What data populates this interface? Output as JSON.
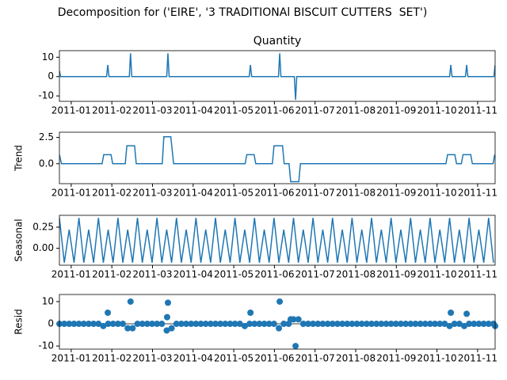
{
  "title": "Decomposition for ('EIRE', '3 TRADITIONAl BISCUIT CUTTERS  SET')",
  "chart_data": [
    {
      "type": "line",
      "title": "Quantity",
      "color": "#1f77b4",
      "x": [
        0.71,
        0.74,
        1.87,
        1.9,
        1.93,
        2.43,
        2.46,
        2.49,
        3.35,
        3.38,
        3.41,
        5.38,
        5.41,
        5.44,
        6.1,
        6.13,
        6.16,
        6.49,
        6.52,
        6.55,
        10.31,
        10.34,
        10.37,
        10.7,
        10.73,
        10.76,
        11.4,
        11.43
      ],
      "values": [
        3,
        0,
        0,
        6,
        0,
        0,
        12,
        0,
        0,
        12,
        0,
        0,
        6,
        0,
        0,
        12,
        0,
        0,
        -12,
        0,
        0,
        6,
        0,
        0,
        6,
        0,
        0,
        6
      ],
      "xlim": [
        0.71,
        11.43
      ],
      "xticks": [
        {
          "value": 1,
          "label": "2011-01"
        },
        {
          "value": 2,
          "label": "2011-02"
        },
        {
          "value": 3,
          "label": "2011-03"
        },
        {
          "value": 4,
          "label": "2011-04"
        },
        {
          "value": 5,
          "label": "2011-05"
        },
        {
          "value": 6,
          "label": "2011-06"
        },
        {
          "value": 7,
          "label": "2011-07"
        },
        {
          "value": 8,
          "label": "2011-08"
        },
        {
          "value": 9,
          "label": "2011-09"
        },
        {
          "value": 10,
          "label": "2011-10"
        },
        {
          "value": 11,
          "label": "2011-11"
        }
      ],
      "ylim": [
        -12.8,
        13.4
      ],
      "yticks": [
        -10,
        0,
        10
      ]
    },
    {
      "type": "line",
      "ylabel": "Trend",
      "color": "#1f77b4",
      "x": [
        0.71,
        0.76,
        1.76,
        1.8,
        1.98,
        2.02,
        2.33,
        2.37,
        2.56,
        2.6,
        3.24,
        3.28,
        3.45,
        3.52,
        5.28,
        5.32,
        5.5,
        5.54,
        5.95,
        5.99,
        6.2,
        6.24,
        6.36,
        6.4,
        6.6,
        6.64,
        10.22,
        10.26,
        10.44,
        10.48,
        10.6,
        10.64,
        10.83,
        10.87,
        11.38,
        11.42
      ],
      "values": [
        0.86,
        0,
        0,
        0.86,
        0.86,
        0,
        0,
        1.71,
        1.71,
        0,
        0,
        2.57,
        2.57,
        0,
        0,
        0.86,
        0.86,
        0,
        0,
        1.71,
        1.71,
        0,
        0,
        -1.71,
        -1.71,
        0,
        0,
        0.86,
        0.86,
        0,
        0,
        0.86,
        0.86,
        0,
        0,
        0.86
      ],
      "xlim": [
        0.71,
        11.43
      ],
      "xticks": [
        {
          "value": 1,
          "label": "2011-01"
        },
        {
          "value": 2,
          "label": "2011-02"
        },
        {
          "value": 3,
          "label": "2011-03"
        },
        {
          "value": 4,
          "label": "2011-04"
        },
        {
          "value": 5,
          "label": "2011-05"
        },
        {
          "value": 6,
          "label": "2011-06"
        },
        {
          "value": 7,
          "label": "2011-07"
        },
        {
          "value": 8,
          "label": "2011-08"
        },
        {
          "value": 9,
          "label": "2011-09"
        },
        {
          "value": 10,
          "label": "2011-10"
        },
        {
          "value": 11,
          "label": "2011-11"
        }
      ],
      "ylim": [
        -1.9,
        3.0
      ],
      "yticks": [
        {
          "value": 0,
          "label": "0.0"
        },
        {
          "value": 2.5,
          "label": "2.5"
        }
      ]
    },
    {
      "type": "line",
      "ylabel": "Seasonal",
      "color": "#1f77b4",
      "x": [
        0.71,
        0.83,
        0.95,
        1.07,
        1.19,
        1.31,
        1.43,
        1.55,
        1.67,
        1.79,
        1.91,
        2.03,
        2.15,
        2.27,
        2.39,
        2.51,
        2.63,
        2.75,
        2.87,
        2.99,
        3.11,
        3.23,
        3.35,
        3.47,
        3.59,
        3.71,
        3.83,
        3.95,
        4.07,
        4.19,
        4.31,
        4.43,
        4.55,
        4.67,
        4.79,
        4.91,
        5.03,
        5.15,
        5.27,
        5.39,
        5.51,
        5.63,
        5.75,
        5.87,
        5.99,
        6.11,
        6.23,
        6.35,
        6.47,
        6.59,
        6.71,
        6.83,
        6.95,
        7.07,
        7.19,
        7.31,
        7.43,
        7.55,
        7.67,
        7.79,
        7.91,
        8.03,
        8.15,
        8.27,
        8.39,
        8.51,
        8.63,
        8.75,
        8.87,
        8.99,
        9.11,
        9.23,
        9.35,
        9.47,
        9.59,
        9.71,
        9.83,
        9.95,
        10.07,
        10.19,
        10.31,
        10.43,
        10.55,
        10.67,
        10.79,
        10.91,
        11.03,
        11.15,
        11.27,
        11.39
      ],
      "values": [
        0.36,
        -0.17,
        0.22,
        -0.17,
        0.36,
        -0.17,
        0.22,
        -0.17,
        0.36,
        -0.17,
        0.22,
        -0.17,
        0.36,
        -0.17,
        0.22,
        -0.17,
        0.36,
        -0.17,
        0.22,
        -0.17,
        0.36,
        -0.17,
        0.22,
        -0.17,
        0.36,
        -0.17,
        0.22,
        -0.17,
        0.36,
        -0.17,
        0.22,
        -0.17,
        0.36,
        -0.17,
        0.22,
        -0.17,
        0.36,
        -0.17,
        0.22,
        -0.17,
        0.36,
        -0.17,
        0.22,
        -0.17,
        0.36,
        -0.17,
        0.22,
        -0.17,
        0.36,
        -0.17,
        0.22,
        -0.17,
        0.36,
        -0.17,
        0.22,
        -0.17,
        0.36,
        -0.17,
        0.22,
        -0.17,
        0.36,
        -0.17,
        0.22,
        -0.17,
        0.36,
        -0.17,
        0.22,
        -0.17,
        0.36,
        -0.17,
        0.22,
        -0.17,
        0.36,
        -0.17,
        0.22,
        -0.17,
        0.36,
        -0.17,
        0.22,
        -0.17,
        0.36,
        -0.17,
        0.22,
        -0.17,
        0.36,
        -0.17,
        0.22,
        -0.17,
        0.36,
        -0.17
      ],
      "xlim": [
        0.71,
        11.43
      ],
      "xticks": [
        {
          "value": 1,
          "label": "2011-01"
        },
        {
          "value": 2,
          "label": "2011-02"
        },
        {
          "value": 3,
          "label": "2011-03"
        },
        {
          "value": 4,
          "label": "2011-04"
        },
        {
          "value": 5,
          "label": "2011-05"
        },
        {
          "value": 6,
          "label": "2011-06"
        },
        {
          "value": 7,
          "label": "2011-07"
        },
        {
          "value": 8,
          "label": "2011-08"
        },
        {
          "value": 9,
          "label": "2011-09"
        },
        {
          "value": 10,
          "label": "2011-10"
        },
        {
          "value": 11,
          "label": "2011-11"
        }
      ],
      "ylim": [
        -0.2,
        0.39
      ],
      "yticks": [
        {
          "value": 0,
          "label": "0.00"
        },
        {
          "value": 0.25,
          "label": "0.25"
        }
      ]
    },
    {
      "type": "scatter",
      "ylabel": "Resid",
      "color": "#1f77b4",
      "x": [
        0.71,
        0.83,
        0.95,
        1.07,
        1.19,
        1.31,
        1.43,
        1.55,
        1.67,
        1.79,
        1.91,
        2.03,
        2.15,
        2.27,
        2.39,
        2.51,
        2.63,
        2.75,
        2.87,
        2.99,
        3.11,
        3.23,
        3.35,
        3.47,
        3.59,
        3.71,
        3.83,
        3.95,
        4.07,
        4.19,
        4.31,
        4.43,
        4.55,
        4.67,
        4.79,
        4.91,
        5.03,
        5.15,
        5.27,
        5.39,
        5.51,
        5.63,
        5.75,
        5.87,
        5.99,
        6.11,
        6.23,
        6.35,
        6.47,
        6.59,
        6.71,
        6.83,
        6.95,
        7.07,
        7.19,
        7.31,
        7.43,
        7.55,
        7.67,
        7.79,
        7.91,
        8.03,
        8.15,
        8.27,
        8.39,
        8.51,
        8.63,
        8.75,
        8.87,
        8.99,
        9.11,
        9.23,
        9.35,
        9.47,
        9.59,
        9.71,
        9.83,
        9.95,
        10.07,
        10.19,
        10.31,
        10.43,
        10.55,
        10.67,
        10.79,
        10.91,
        11.03,
        11.15,
        11.27,
        11.39,
        1.9,
        2.46,
        3.38,
        3.36,
        5.41,
        6.13,
        6.52,
        6.4,
        10.34,
        10.73,
        11.43
      ],
      "values": [
        0,
        0,
        0,
        0,
        0,
        0,
        0,
        0,
        0,
        -1,
        0,
        0,
        0,
        0,
        -2,
        -2,
        0,
        0,
        0,
        0,
        0,
        0,
        -3,
        -2,
        0,
        0,
        0,
        0,
        0,
        0,
        0,
        0,
        0,
        0,
        0,
        0,
        0,
        0,
        -1,
        0,
        0,
        0,
        0,
        0,
        0,
        -2,
        0,
        0,
        2,
        2,
        0,
        0,
        0,
        0,
        0,
        0,
        0,
        0,
        0,
        0,
        0,
        0,
        0,
        0,
        0,
        0,
        0,
        0,
        0,
        0,
        0,
        0,
        0,
        0,
        0,
        0,
        0,
        0,
        0,
        0,
        -1,
        0,
        0,
        -1,
        0,
        0,
        0,
        0,
        0,
        0,
        5,
        10,
        9.5,
        3,
        5,
        10,
        -10,
        2,
        5,
        4.5,
        -1
      ],
      "xlim": [
        0.71,
        11.43
      ],
      "xticks": [
        {
          "value": 1,
          "label": "2011-01"
        },
        {
          "value": 2,
          "label": "2011-02"
        },
        {
          "value": 3,
          "label": "2011-03"
        },
        {
          "value": 4,
          "label": "2011-04"
        },
        {
          "value": 5,
          "label": "2011-05"
        },
        {
          "value": 6,
          "label": "2011-06"
        },
        {
          "value": 7,
          "label": "2011-07"
        },
        {
          "value": 8,
          "label": "2011-08"
        },
        {
          "value": 9,
          "label": "2011-09"
        },
        {
          "value": 10,
          "label": "2011-10"
        },
        {
          "value": 11,
          "label": "2011-11"
        }
      ],
      "ylim": [
        -11.4,
        13.2
      ],
      "yticks": [
        -10,
        0,
        10
      ]
    }
  ]
}
